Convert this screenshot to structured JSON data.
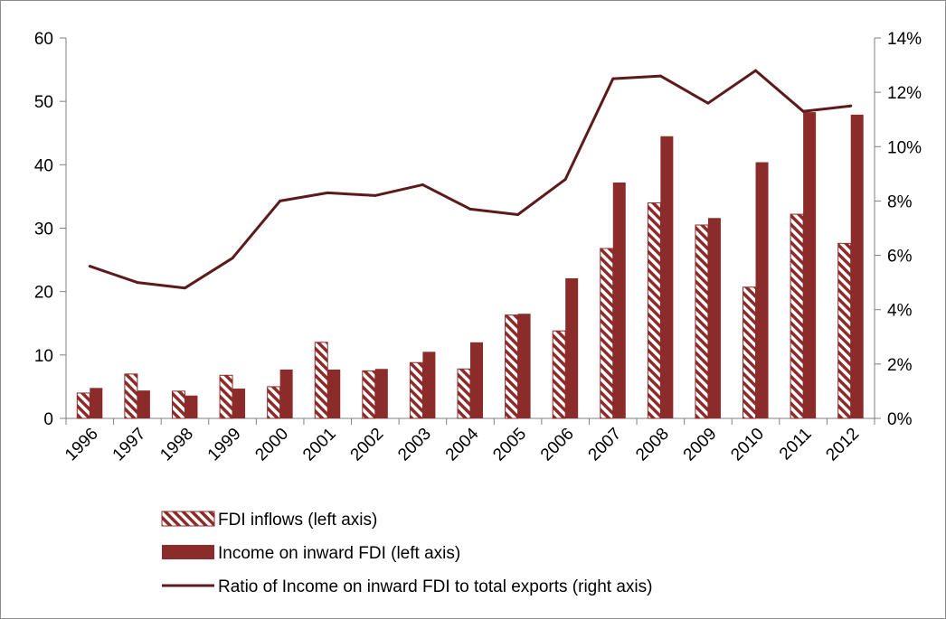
{
  "chart_data": {
    "type": "bar",
    "title": "",
    "xlabel": "",
    "ylabel": "",
    "categories": [
      "1996",
      "1997",
      "1998",
      "1999",
      "2000",
      "2001",
      "2002",
      "2003",
      "2004",
      "2005",
      "2006",
      "2007",
      "2008",
      "2009",
      "2010",
      "2011",
      "2012"
    ],
    "series": [
      {
        "name": "FDI inflows (left axis)",
        "type": "bar",
        "axis": "left",
        "style": "hatched",
        "values": [
          4.0,
          7.0,
          4.3,
          6.8,
          5.0,
          12.0,
          7.5,
          8.8,
          7.8,
          16.3,
          13.8,
          26.8,
          34.0,
          30.5,
          20.7,
          32.2,
          27.6
        ]
      },
      {
        "name": "Income on inward FDI (left axis)",
        "type": "bar",
        "axis": "left",
        "style": "solid",
        "values": [
          4.8,
          4.4,
          3.6,
          4.7,
          7.7,
          7.7,
          7.8,
          10.5,
          12.0,
          16.5,
          22.1,
          37.2,
          44.5,
          31.6,
          40.4,
          48.3,
          47.9
        ]
      },
      {
        "name": "Ratio of Income on inward FDI to total exports (right axis)",
        "type": "line",
        "axis": "right",
        "unit": "%",
        "values": [
          5.6,
          5.0,
          4.8,
          5.9,
          8.0,
          8.3,
          8.2,
          8.6,
          7.7,
          7.5,
          8.8,
          12.5,
          12.6,
          11.6,
          12.8,
          11.3,
          11.5
        ]
      }
    ],
    "y_left": {
      "ylim": [
        0,
        60
      ],
      "ticks": [
        0,
        10,
        20,
        30,
        40,
        50,
        60
      ],
      "tick_labels": [
        "0",
        "10",
        "20",
        "30",
        "40",
        "50",
        "60"
      ]
    },
    "y_right": {
      "ylim": [
        0,
        14
      ],
      "ticks": [
        0,
        2,
        4,
        6,
        8,
        10,
        12,
        14
      ],
      "tick_labels": [
        "0%",
        "2%",
        "4%",
        "6%",
        "8%",
        "10%",
        "12%",
        "14%"
      ]
    },
    "grid": false,
    "legend_position": "bottom-left",
    "colors": {
      "bar": "#8b2c2b",
      "line": "#5c1a1a",
      "axis": "#808080"
    }
  }
}
